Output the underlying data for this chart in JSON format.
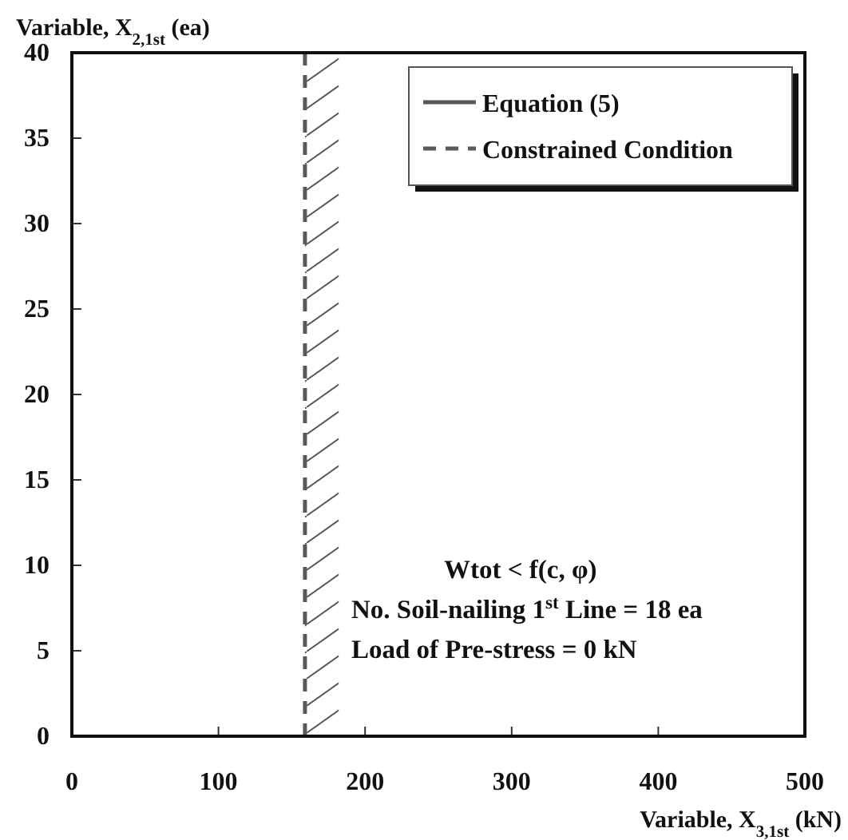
{
  "chart_data": {
    "type": "line",
    "xlabel": "Variable, X$_{3,1st}$ (kN)",
    "ylabel": "Variable, X$_{2,1st}$ (ea)",
    "xlim": [
      0,
      500
    ],
    "xticks": [
      0,
      100,
      200,
      300,
      400,
      500
    ],
    "ylim": [
      0,
      40
    ],
    "yticks": [
      0,
      5,
      10,
      15,
      20,
      25,
      30,
      35,
      40
    ],
    "series": [
      {
        "name": "Equation (5)",
        "color": "#595959",
        "line_style": "solid"
      },
      {
        "name": "Constrained Condition",
        "color": "#595959",
        "x": [
          159,
          159
        ],
        "values": [
          0,
          40
        ],
        "line_style": "dashed"
      }
    ],
    "bands": [
      {
        "axis": "x",
        "from": 159,
        "to": 182,
        "color": "#595959"
      }
    ],
    "annotations": [
      "Wtot < f(c, φ)",
      "No. Soil-nailing 1$^{st}$ Line = 18 ea",
      "Load of Pre-stress = 0 kN"
    ],
    "legend": "top right",
    "grid": false,
    "marker": "none"
  }
}
